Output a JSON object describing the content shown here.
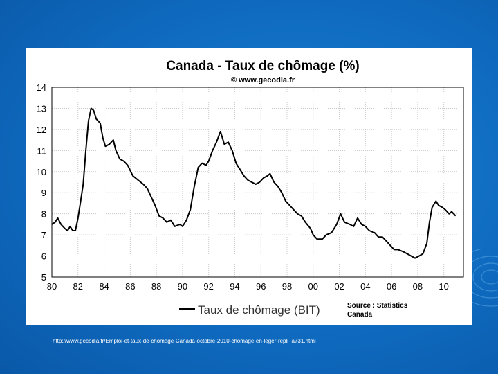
{
  "slide": {
    "background_color": "#0f6bc0",
    "caption_url": "http://www.gecodia.fr/Emploi-et-taux-de-chomage-Canada-octobre-2010-chomage-en-leger-repli_a731.html"
  },
  "chart_data": {
    "type": "line",
    "title": "Canada - Taux de chômage (%)",
    "subtitle": "© www.gecodia.fr",
    "source_note": [
      "Source : Statistics",
      "Canada"
    ],
    "xlabel": "",
    "ylabel": "",
    "xlim": [
      1980,
      2011.5
    ],
    "ylim": [
      5,
      14
    ],
    "grid": true,
    "legend_position": "bottom-center",
    "xtick_labels": [
      "80",
      "82",
      "84",
      "86",
      "88",
      "90",
      "92",
      "94",
      "96",
      "98",
      "00",
      "02",
      "04",
      "06",
      "08",
      "10"
    ],
    "xtick_values": [
      1980,
      1982,
      1984,
      1986,
      1988,
      1990,
      1992,
      1994,
      1996,
      1998,
      2000,
      2002,
      2004,
      2006,
      2008,
      2010
    ],
    "ytick_labels": [
      "5",
      "6",
      "7",
      "8",
      "9",
      "10",
      "11",
      "12",
      "13",
      "14"
    ],
    "ytick_values": [
      5,
      6,
      7,
      8,
      9,
      10,
      11,
      12,
      13,
      14
    ],
    "series": [
      {
        "name": "Taux de chômage (BIT)",
        "color": "#000000",
        "points": [
          [
            1980.0,
            7.5
          ],
          [
            1980.25,
            7.6
          ],
          [
            1980.45,
            7.8
          ],
          [
            1980.7,
            7.5
          ],
          [
            1981.0,
            7.3
          ],
          [
            1981.2,
            7.2
          ],
          [
            1981.4,
            7.4
          ],
          [
            1981.6,
            7.2
          ],
          [
            1981.8,
            7.2
          ],
          [
            1982.0,
            7.8
          ],
          [
            1982.2,
            8.6
          ],
          [
            1982.4,
            9.4
          ],
          [
            1982.6,
            11.0
          ],
          [
            1982.8,
            12.4
          ],
          [
            1983.0,
            13.0
          ],
          [
            1983.2,
            12.9
          ],
          [
            1983.4,
            12.5
          ],
          [
            1983.7,
            12.3
          ],
          [
            1983.9,
            11.6
          ],
          [
            1984.1,
            11.2
          ],
          [
            1984.4,
            11.3
          ],
          [
            1984.7,
            11.5
          ],
          [
            1984.9,
            11.0
          ],
          [
            1985.2,
            10.6
          ],
          [
            1985.5,
            10.5
          ],
          [
            1985.8,
            10.3
          ],
          [
            1986.2,
            9.8
          ],
          [
            1986.6,
            9.6
          ],
          [
            1987.0,
            9.4
          ],
          [
            1987.3,
            9.2
          ],
          [
            1987.6,
            8.8
          ],
          [
            1987.9,
            8.4
          ],
          [
            1988.2,
            7.9
          ],
          [
            1988.5,
            7.8
          ],
          [
            1988.8,
            7.6
          ],
          [
            1989.1,
            7.7
          ],
          [
            1989.4,
            7.4
          ],
          [
            1989.8,
            7.5
          ],
          [
            1990.0,
            7.4
          ],
          [
            1990.3,
            7.7
          ],
          [
            1990.6,
            8.2
          ],
          [
            1990.9,
            9.3
          ],
          [
            1991.2,
            10.2
          ],
          [
            1991.5,
            10.4
          ],
          [
            1991.8,
            10.3
          ],
          [
            1992.0,
            10.5
          ],
          [
            1992.3,
            11.0
          ],
          [
            1992.6,
            11.4
          ],
          [
            1992.9,
            11.9
          ],
          [
            1993.0,
            11.7
          ],
          [
            1993.2,
            11.3
          ],
          [
            1993.5,
            11.4
          ],
          [
            1993.8,
            11.0
          ],
          [
            1994.1,
            10.4
          ],
          [
            1994.4,
            10.1
          ],
          [
            1994.7,
            9.8
          ],
          [
            1995.0,
            9.6
          ],
          [
            1995.3,
            9.5
          ],
          [
            1995.6,
            9.4
          ],
          [
            1995.9,
            9.5
          ],
          [
            1996.2,
            9.7
          ],
          [
            1996.5,
            9.8
          ],
          [
            1996.7,
            9.9
          ],
          [
            1997.0,
            9.5
          ],
          [
            1997.3,
            9.3
          ],
          [
            1997.6,
            9.0
          ],
          [
            1997.9,
            8.6
          ],
          [
            1998.2,
            8.4
          ],
          [
            1998.5,
            8.2
          ],
          [
            1998.8,
            8.0
          ],
          [
            1999.1,
            7.9
          ],
          [
            1999.4,
            7.6
          ],
          [
            1999.8,
            7.3
          ],
          [
            2000.0,
            7.0
          ],
          [
            2000.3,
            6.8
          ],
          [
            2000.7,
            6.8
          ],
          [
            2001.0,
            7.0
          ],
          [
            2001.4,
            7.1
          ],
          [
            2001.8,
            7.5
          ],
          [
            2002.1,
            8.0
          ],
          [
            2002.4,
            7.6
          ],
          [
            2002.8,
            7.5
          ],
          [
            2003.1,
            7.4
          ],
          [
            2003.4,
            7.8
          ],
          [
            2003.7,
            7.5
          ],
          [
            2004.0,
            7.4
          ],
          [
            2004.3,
            7.2
          ],
          [
            2004.7,
            7.1
          ],
          [
            2005.0,
            6.9
          ],
          [
            2005.3,
            6.9
          ],
          [
            2005.6,
            6.7
          ],
          [
            2005.9,
            6.5
          ],
          [
            2006.2,
            6.3
          ],
          [
            2006.5,
            6.3
          ],
          [
            2006.9,
            6.2
          ],
          [
            2007.2,
            6.1
          ],
          [
            2007.5,
            6.0
          ],
          [
            2007.8,
            5.9
          ],
          [
            2008.1,
            6.0
          ],
          [
            2008.4,
            6.1
          ],
          [
            2008.7,
            6.6
          ],
          [
            2008.9,
            7.6
          ],
          [
            2009.1,
            8.3
          ],
          [
            2009.4,
            8.6
          ],
          [
            2009.6,
            8.4
          ],
          [
            2009.9,
            8.3
          ],
          [
            2010.1,
            8.2
          ],
          [
            2010.4,
            8.0
          ],
          [
            2010.6,
            8.1
          ],
          [
            2010.9,
            7.9
          ]
        ]
      }
    ]
  }
}
